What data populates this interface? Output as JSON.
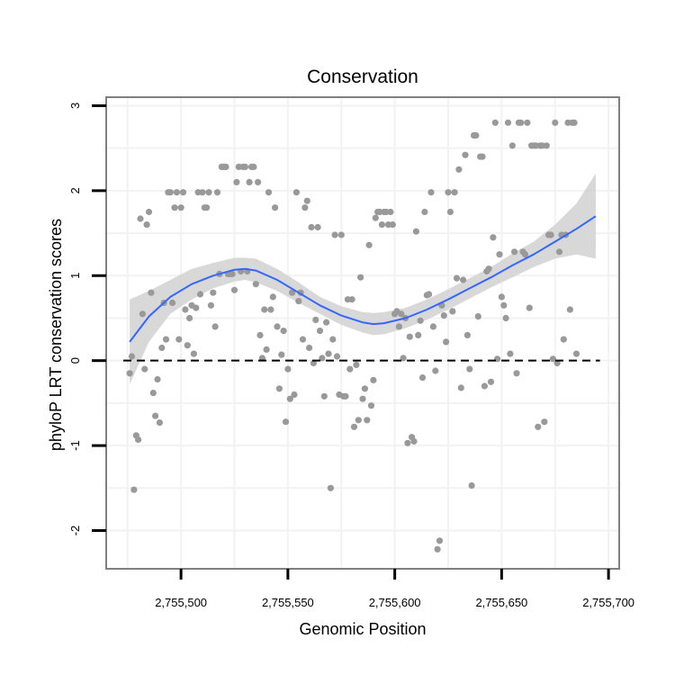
{
  "chart_data": {
    "type": "scatter",
    "title": "Conservation",
    "xlabel": "Genomic Position",
    "ylabel": "phyloP LRT conservation scores",
    "xlim": [
      2755465,
      2755705
    ],
    "ylim": [
      -2.45,
      3.1
    ],
    "x_ticks": [
      2755500,
      2755550,
      2755600,
      2755650,
      2755700
    ],
    "x_tick_labels": [
      "2,755,500",
      "2,755,550",
      "2,755,600",
      "2,755,650",
      "2,755,700"
    ],
    "y_ticks": [
      -2,
      -1,
      0,
      1,
      2,
      3
    ],
    "y_tick_labels": [
      "-2",
      "-1",
      "0",
      "1",
      "2",
      "3"
    ],
    "reference_line": {
      "y": 0,
      "style": "dashed",
      "color": "#000000"
    },
    "grid": true,
    "colors": {
      "points": "#999999",
      "smooth": "#3366ff",
      "band": "#d4d4d4",
      "frame": "#7f7f7f",
      "grid": "#f2f2f2"
    },
    "points": [
      {
        "x": 2755476,
        "y": -0.15
      },
      {
        "x": 2755477,
        "y": 0.05
      },
      {
        "x": 2755478,
        "y": -1.52
      },
      {
        "x": 2755479,
        "y": -0.88
      },
      {
        "x": 2755480,
        "y": -0.93
      },
      {
        "x": 2755481,
        "y": 1.67
      },
      {
        "x": 2755482,
        "y": 0.55
      },
      {
        "x": 2755483,
        "y": -0.1
      },
      {
        "x": 2755484,
        "y": 1.6
      },
      {
        "x": 2755485,
        "y": 1.75
      },
      {
        "x": 2755486,
        "y": 0.8
      },
      {
        "x": 2755487,
        "y": -0.38
      },
      {
        "x": 2755488,
        "y": -0.65
      },
      {
        "x": 2755489,
        "y": -0.22
      },
      {
        "x": 2755490,
        "y": -0.73
      },
      {
        "x": 2755491,
        "y": 0.15
      },
      {
        "x": 2755492,
        "y": 0.68
      },
      {
        "x": 2755493,
        "y": 0.25
      },
      {
        "x": 2755494,
        "y": 1.98
      },
      {
        "x": 2755495,
        "y": 1.98
      },
      {
        "x": 2755496,
        "y": 0.68
      },
      {
        "x": 2755497,
        "y": 1.8
      },
      {
        "x": 2755498,
        "y": 1.98
      },
      {
        "x": 2755499,
        "y": 0.25
      },
      {
        "x": 2755500,
        "y": 1.8
      },
      {
        "x": 2755501,
        "y": 1.98
      },
      {
        "x": 2755502,
        "y": 0.6
      },
      {
        "x": 2755503,
        "y": 0.18
      },
      {
        "x": 2755504,
        "y": 0.5
      },
      {
        "x": 2755505,
        "y": 0.65
      },
      {
        "x": 2755506,
        "y": 0.08
      },
      {
        "x": 2755507,
        "y": 0.62
      },
      {
        "x": 2755508,
        "y": 1.98
      },
      {
        "x": 2755509,
        "y": 0.78
      },
      {
        "x": 2755510,
        "y": 1.98
      },
      {
        "x": 2755511,
        "y": 1.8
      },
      {
        "x": 2755512,
        "y": 1.8
      },
      {
        "x": 2755513,
        "y": 1.98
      },
      {
        "x": 2755514,
        "y": 0.65
      },
      {
        "x": 2755515,
        "y": 0.8
      },
      {
        "x": 2755516,
        "y": 0.4
      },
      {
        "x": 2755517,
        "y": 1.98
      },
      {
        "x": 2755518,
        "y": 1.02
      },
      {
        "x": 2755519,
        "y": 2.28
      },
      {
        "x": 2755520,
        "y": 2.28
      },
      {
        "x": 2755521,
        "y": 2.28
      },
      {
        "x": 2755522,
        "y": 1.02
      },
      {
        "x": 2755523,
        "y": 1.02
      },
      {
        "x": 2755524,
        "y": 1.02
      },
      {
        "x": 2755525,
        "y": 0.83
      },
      {
        "x": 2755526,
        "y": 2.1
      },
      {
        "x": 2755527,
        "y": 2.28
      },
      {
        "x": 2755528,
        "y": 1.05
      },
      {
        "x": 2755529,
        "y": 2.28
      },
      {
        "x": 2755530,
        "y": 2.28
      },
      {
        "x": 2755531,
        "y": 1.05
      },
      {
        "x": 2755532,
        "y": 2.1
      },
      {
        "x": 2755533,
        "y": 2.28
      },
      {
        "x": 2755534,
        "y": 2.28
      },
      {
        "x": 2755535,
        "y": 0.9
      },
      {
        "x": 2755536,
        "y": 2.1
      },
      {
        "x": 2755537,
        "y": 0.3
      },
      {
        "x": 2755538,
        "y": 0.03
      },
      {
        "x": 2755539,
        "y": 0.6
      },
      {
        "x": 2755540,
        "y": 0.13
      },
      {
        "x": 2755541,
        "y": 1.98
      },
      {
        "x": 2755542,
        "y": 0.6
      },
      {
        "x": 2755543,
        "y": 0.75
      },
      {
        "x": 2755544,
        "y": 1.8
      },
      {
        "x": 2755545,
        "y": 0.4
      },
      {
        "x": 2755546,
        "y": -0.33
      },
      {
        "x": 2755547,
        "y": 0.07
      },
      {
        "x": 2755548,
        "y": 0.35
      },
      {
        "x": 2755549,
        "y": -0.72
      },
      {
        "x": 2755550,
        "y": -0.1
      },
      {
        "x": 2755551,
        "y": -0.45
      },
      {
        "x": 2755552,
        "y": 0.8
      },
      {
        "x": 2755553,
        "y": -0.4
      },
      {
        "x": 2755554,
        "y": 1.98
      },
      {
        "x": 2755555,
        "y": 0.7
      },
      {
        "x": 2755556,
        "y": 0.8
      },
      {
        "x": 2755557,
        "y": 0.25
      },
      {
        "x": 2755558,
        "y": 1.8
      },
      {
        "x": 2755559,
        "y": 1.88
      },
      {
        "x": 2755560,
        "y": 0.15
      },
      {
        "x": 2755561,
        "y": 1.57
      },
      {
        "x": 2755562,
        "y": -0.03
      },
      {
        "x": 2755563,
        "y": 0.48
      },
      {
        "x": 2755564,
        "y": 1.57
      },
      {
        "x": 2755565,
        "y": 0.35
      },
      {
        "x": 2755566,
        "y": 0.03
      },
      {
        "x": 2755567,
        "y": -0.42
      },
      {
        "x": 2755568,
        "y": 0.45
      },
      {
        "x": 2755569,
        "y": 0.08
      },
      {
        "x": 2755570,
        "y": -1.5
      },
      {
        "x": 2755571,
        "y": 0.25
      },
      {
        "x": 2755572,
        "y": 1.48
      },
      {
        "x": 2755573,
        "y": 0.05
      },
      {
        "x": 2755574,
        "y": -0.4
      },
      {
        "x": 2755575,
        "y": 1.48
      },
      {
        "x": 2755576,
        "y": -0.42
      },
      {
        "x": 2755577,
        "y": -0.42
      },
      {
        "x": 2755578,
        "y": 0.72
      },
      {
        "x": 2755579,
        "y": -0.1
      },
      {
        "x": 2755580,
        "y": 0.72
      },
      {
        "x": 2755581,
        "y": -0.78
      },
      {
        "x": 2755582,
        "y": -0.05
      },
      {
        "x": 2755583,
        "y": -0.7
      },
      {
        "x": 2755584,
        "y": 0.98
      },
      {
        "x": 2755585,
        "y": -0.45
      },
      {
        "x": 2755586,
        "y": -0.33
      },
      {
        "x": 2755587,
        "y": -0.7
      },
      {
        "x": 2755588,
        "y": 1.36
      },
      {
        "x": 2755589,
        "y": -0.53
      },
      {
        "x": 2755590,
        "y": -0.23
      },
      {
        "x": 2755591,
        "y": 1.68
      },
      {
        "x": 2755592,
        "y": 1.75
      },
      {
        "x": 2755593,
        "y": 1.75
      },
      {
        "x": 2755594,
        "y": 1.6
      },
      {
        "x": 2755595,
        "y": 1.75
      },
      {
        "x": 2755596,
        "y": 1.75
      },
      {
        "x": 2755597,
        "y": 1.6
      },
      {
        "x": 2755598,
        "y": 1.75
      },
      {
        "x": 2755599,
        "y": 1.6
      },
      {
        "x": 2755600,
        "y": 0.55
      },
      {
        "x": 2755601,
        "y": 0.58
      },
      {
        "x": 2755602,
        "y": 0.4
      },
      {
        "x": 2755603,
        "y": 0.55
      },
      {
        "x": 2755604,
        "y": 0.03
      },
      {
        "x": 2755605,
        "y": 0.5
      },
      {
        "x": 2755606,
        "y": -0.97
      },
      {
        "x": 2755607,
        "y": 0.28
      },
      {
        "x": 2755608,
        "y": -0.9
      },
      {
        "x": 2755609,
        "y": -0.95
      },
      {
        "x": 2755610,
        "y": 1.52
      },
      {
        "x": 2755611,
        "y": 0.3
      },
      {
        "x": 2755612,
        "y": 0.47
      },
      {
        "x": 2755613,
        "y": -0.2
      },
      {
        "x": 2755614,
        "y": 1.75
      },
      {
        "x": 2755615,
        "y": 0.77
      },
      {
        "x": 2755616,
        "y": 0.78
      },
      {
        "x": 2755617,
        "y": 1.98
      },
      {
        "x": 2755618,
        "y": 0.4
      },
      {
        "x": 2755619,
        "y": -0.12
      },
      {
        "x": 2755620,
        "y": -2.22
      },
      {
        "x": 2755621,
        "y": -2.12
      },
      {
        "x": 2755622,
        "y": 0.65
      },
      {
        "x": 2755623,
        "y": 0.53
      },
      {
        "x": 2755624,
        "y": 0.22
      },
      {
        "x": 2755625,
        "y": 1.98
      },
      {
        "x": 2755626,
        "y": 1.75
      },
      {
        "x": 2755627,
        "y": 0.58
      },
      {
        "x": 2755628,
        "y": 1.98
      },
      {
        "x": 2755629,
        "y": 0.97
      },
      {
        "x": 2755630,
        "y": 2.25
      },
      {
        "x": 2755631,
        "y": -0.32
      },
      {
        "x": 2755632,
        "y": 0.95
      },
      {
        "x": 2755633,
        "y": 2.42
      },
      {
        "x": 2755634,
        "y": 0.3
      },
      {
        "x": 2755635,
        "y": -0.1
      },
      {
        "x": 2755636,
        "y": -1.47
      },
      {
        "x": 2755637,
        "y": 2.65
      },
      {
        "x": 2755638,
        "y": 2.65
      },
      {
        "x": 2755639,
        "y": 0.52
      },
      {
        "x": 2755640,
        "y": 2.4
      },
      {
        "x": 2755641,
        "y": 2.4
      },
      {
        "x": 2755642,
        "y": -0.3
      },
      {
        "x": 2755643,
        "y": 1.05
      },
      {
        "x": 2755644,
        "y": 1.08
      },
      {
        "x": 2755645,
        "y": -0.25
      },
      {
        "x": 2755646,
        "y": 1.45
      },
      {
        "x": 2755647,
        "y": 2.8
      },
      {
        "x": 2755648,
        "y": 0.02
      },
      {
        "x": 2755649,
        "y": 1.25
      },
      {
        "x": 2755650,
        "y": 0.75
      },
      {
        "x": 2755651,
        "y": 0.65
      },
      {
        "x": 2755652,
        "y": 0.5
      },
      {
        "x": 2755653,
        "y": 2.8
      },
      {
        "x": 2755654,
        "y": 0.08
      },
      {
        "x": 2755655,
        "y": 2.53
      },
      {
        "x": 2755656,
        "y": 1.28
      },
      {
        "x": 2755657,
        "y": -0.15
      },
      {
        "x": 2755658,
        "y": 2.8
      },
      {
        "x": 2755659,
        "y": 2.8
      },
      {
        "x": 2755660,
        "y": 1.28
      },
      {
        "x": 2755661,
        "y": 1.25
      },
      {
        "x": 2755662,
        "y": 2.8
      },
      {
        "x": 2755663,
        "y": 0.62
      },
      {
        "x": 2755664,
        "y": 2.53
      },
      {
        "x": 2755665,
        "y": 2.53
      },
      {
        "x": 2755666,
        "y": 2.53
      },
      {
        "x": 2755667,
        "y": -0.78
      },
      {
        "x": 2755668,
        "y": 2.53
      },
      {
        "x": 2755669,
        "y": 2.53
      },
      {
        "x": 2755670,
        "y": -0.72
      },
      {
        "x": 2755671,
        "y": 2.53
      },
      {
        "x": 2755672,
        "y": 1.48
      },
      {
        "x": 2755673,
        "y": 1.48
      },
      {
        "x": 2755674,
        "y": 0.02
      },
      {
        "x": 2755675,
        "y": 2.8
      },
      {
        "x": 2755676,
        "y": -0.03
      },
      {
        "x": 2755677,
        "y": 1.28
      },
      {
        "x": 2755678,
        "y": 1.48
      },
      {
        "x": 2755679,
        "y": 0.25
      },
      {
        "x": 2755680,
        "y": 1.48
      },
      {
        "x": 2755681,
        "y": 2.8
      },
      {
        "x": 2755682,
        "y": 0.6
      },
      {
        "x": 2755683,
        "y": 2.8
      },
      {
        "x": 2755684,
        "y": 2.8
      },
      {
        "x": 2755685,
        "y": 0.08
      }
    ],
    "smooth": {
      "method": "loess",
      "x": [
        2755476,
        2755485,
        2755495,
        2755505,
        2755515,
        2755525,
        2755530,
        2755535,
        2755545,
        2755555,
        2755565,
        2755575,
        2755585,
        2755590,
        2755595,
        2755605,
        2755615,
        2755625,
        2755635,
        2755645,
        2755655,
        2755665,
        2755675,
        2755685,
        2755694
      ],
      "y": [
        0.22,
        0.52,
        0.75,
        0.9,
        1.0,
        1.07,
        1.08,
        1.06,
        0.95,
        0.8,
        0.65,
        0.53,
        0.45,
        0.43,
        0.44,
        0.5,
        0.6,
        0.72,
        0.85,
        0.98,
        1.12,
        1.25,
        1.4,
        1.55,
        1.7
      ],
      "lower": [
        -0.28,
        0.22,
        0.55,
        0.72,
        0.85,
        0.93,
        0.95,
        0.92,
        0.82,
        0.68,
        0.55,
        0.42,
        0.33,
        0.3,
        0.31,
        0.38,
        0.48,
        0.6,
        0.73,
        0.86,
        0.98,
        1.1,
        1.2,
        1.25,
        1.2
      ],
      "upper": [
        0.72,
        0.82,
        0.95,
        1.08,
        1.15,
        1.21,
        1.21,
        1.2,
        1.08,
        0.92,
        0.75,
        0.64,
        0.57,
        0.56,
        0.57,
        0.62,
        0.72,
        0.84,
        0.97,
        1.1,
        1.26,
        1.4,
        1.6,
        1.85,
        2.2
      ]
    }
  }
}
